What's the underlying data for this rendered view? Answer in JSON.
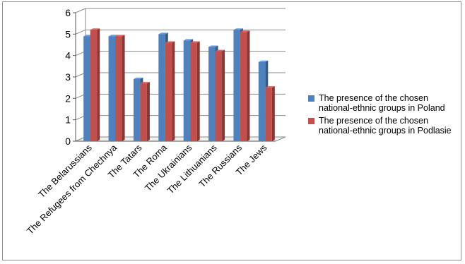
{
  "chart_data": {
    "type": "bar",
    "title": "",
    "xlabel": "",
    "ylabel": "",
    "ylim": [
      0,
      6
    ],
    "yticks": [
      0,
      1,
      2,
      3,
      4,
      5,
      6
    ],
    "grid": true,
    "legend_position": "right",
    "categories": [
      "The Belarussians",
      "The Refugees from Chechnya",
      "The Tatars",
      "The Roma",
      "The Ukrainians",
      "The Lithuanians",
      "The Russians",
      "The Jews"
    ],
    "series": [
      {
        "name": "The presence of the chosen national-ethnic groups in Poland",
        "color": "#4f81bd",
        "values": [
          4.9,
          4.9,
          2.9,
          5.0,
          4.7,
          4.4,
          5.2,
          3.7
        ]
      },
      {
        "name": "The presence of the chosen national-ethnic groups in Podlasie",
        "color": "#c0504d",
        "values": [
          5.2,
          4.9,
          2.7,
          4.6,
          4.6,
          4.2,
          5.1,
          2.5
        ]
      }
    ]
  }
}
